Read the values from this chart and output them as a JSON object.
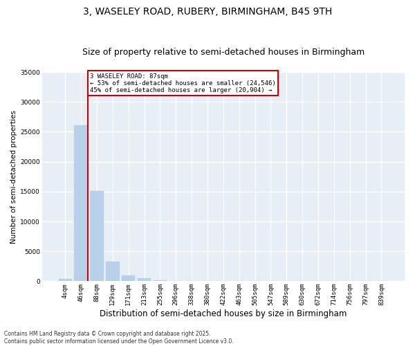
{
  "title_line1": "3, WASELEY ROAD, RUBERY, BIRMINGHAM, B45 9TH",
  "title_line2": "Size of property relative to semi-detached houses in Birmingham",
  "xlabel": "Distribution of semi-detached houses by size in Birmingham",
  "ylabel": "Number of semi-detached properties",
  "bins": [
    "4sqm",
    "46sqm",
    "88sqm",
    "129sqm",
    "171sqm",
    "213sqm",
    "255sqm",
    "296sqm",
    "338sqm",
    "380sqm",
    "422sqm",
    "463sqm",
    "505sqm",
    "547sqm",
    "589sqm",
    "630sqm",
    "672sqm",
    "714sqm",
    "756sqm",
    "797sqm",
    "839sqm"
  ],
  "values": [
    400,
    26100,
    15100,
    3300,
    1000,
    490,
    200,
    50,
    10,
    5,
    2,
    1,
    0,
    0,
    0,
    0,
    0,
    0,
    0,
    0,
    0
  ],
  "bar_color": "#b8d0e8",
  "bar_edge_color": "#b8d0e8",
  "vline_color": "#cc0000",
  "annotation_text": "3 WASELEY ROAD: 87sqm\n← 53% of semi-detached houses are smaller (24,546)\n45% of semi-detached houses are larger (20,904) →",
  "annotation_box_color": "white",
  "annotation_box_edge": "#cc0000",
  "ylim": [
    0,
    35000
  ],
  "yticks": [
    0,
    5000,
    10000,
    15000,
    20000,
    25000,
    30000,
    35000
  ],
  "background_color": "#e8eef5",
  "grid_color": "white",
  "footnote": "Contains HM Land Registry data © Crown copyright and database right 2025.\nContains public sector information licensed under the Open Government Licence v3.0.",
  "title_fontsize": 10,
  "subtitle_fontsize": 9,
  "tick_fontsize": 6.5,
  "ylabel_fontsize": 7.5,
  "xlabel_fontsize": 8.5,
  "footnote_fontsize": 5.5
}
